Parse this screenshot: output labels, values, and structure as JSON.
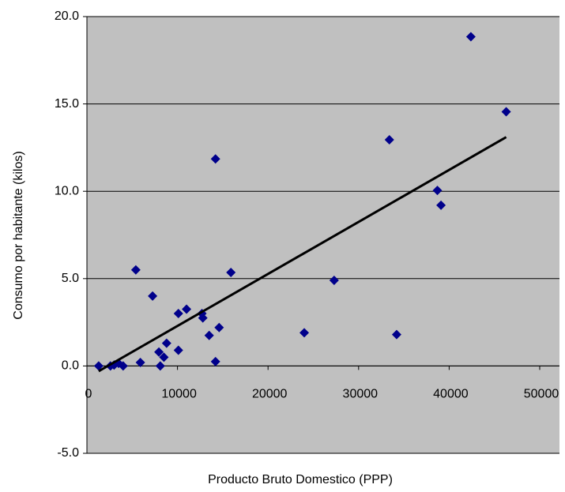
{
  "chart_data": {
    "type": "scatter",
    "xlabel": "Producto Bruto Domestico (PPP)",
    "ylabel": "Consumo por habitante (kilos)",
    "x": [
      1300,
      2600,
      3000,
      3500,
      4000,
      5400,
      5900,
      7250,
      7950,
      8100,
      8500,
      8800,
      10100,
      10100,
      11000,
      12700,
      12800,
      13500,
      14200,
      14200,
      14600,
      15900,
      24000,
      27300,
      33400,
      34200,
      38700,
      39100,
      42400,
      46300
    ],
    "values": [
      0.0,
      0.0,
      0.05,
      0.15,
      0.0,
      5.5,
      0.2,
      4.0,
      0.8,
      0.0,
      0.5,
      1.3,
      3.0,
      0.9,
      3.25,
      3.0,
      2.75,
      1.75,
      11.85,
      0.25,
      2.2,
      5.35,
      1.9,
      4.9,
      12.95,
      1.8,
      10.05,
      9.2,
      18.85,
      14.55
    ],
    "color": "#00008b",
    "trendline": {
      "x": [
        1300,
        46300
      ],
      "values": [
        -0.3,
        13.1
      ],
      "color": "#000000"
    },
    "xlim": [
      0,
      50000
    ],
    "xticks": [
      0,
      10000,
      20000,
      30000,
      40000,
      50000
    ],
    "ylim": [
      -5,
      20
    ],
    "yticks": [
      {
        "value": -5,
        "label": "-5.0"
      },
      {
        "value": 0,
        "label": "0.0"
      },
      {
        "value": 5,
        "label": "5.0"
      },
      {
        "value": 10,
        "label": "10.0"
      },
      {
        "value": 15,
        "label": "15.0"
      },
      {
        "value": 20,
        "label": "20.0"
      }
    ],
    "grid": true
  }
}
